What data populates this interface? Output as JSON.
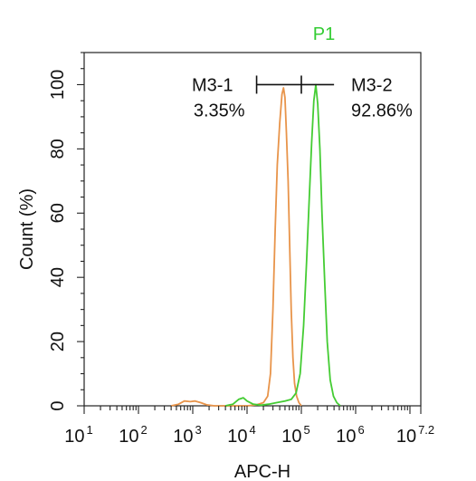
{
  "chart_data": {
    "type": "line",
    "title": "P1",
    "title_color": "#33cc33",
    "xlabel": "APC-H",
    "ylabel": "Count  (%)",
    "x_scale": "log",
    "xlim": [
      10,
      15848932
    ],
    "ylim": [
      0,
      110
    ],
    "x_ticks": [
      {
        "base": "10",
        "exp": "1",
        "value": 10
      },
      {
        "base": "10",
        "exp": "2",
        "value": 100
      },
      {
        "base": "10",
        "exp": "3",
        "value": 1000
      },
      {
        "base": "10",
        "exp": "4",
        "value": 10000
      },
      {
        "base": "10",
        "exp": "5",
        "value": 100000
      },
      {
        "base": "10",
        "exp": "6",
        "value": 1000000
      },
      {
        "base": "10",
        "exp": "7.2",
        "value": 15848932
      }
    ],
    "y_ticks": [
      "0",
      "20",
      "40",
      "60",
      "80",
      "100"
    ],
    "grid": false,
    "series": [
      {
        "color": "#e8944a",
        "points": [
          [
            400,
            0
          ],
          [
            550,
            0.5
          ],
          [
            700,
            1.5
          ],
          [
            900,
            1.3
          ],
          [
            1100,
            1.5
          ],
          [
            1400,
            1
          ],
          [
            1800,
            0.3
          ],
          [
            2500,
            0
          ],
          [
            5000,
            0
          ],
          [
            10000,
            0
          ],
          [
            15000,
            0.3
          ],
          [
            20000,
            1
          ],
          [
            24000,
            3
          ],
          [
            27000,
            10
          ],
          [
            30000,
            30
          ],
          [
            33000,
            55
          ],
          [
            36000,
            75
          ],
          [
            40000,
            88
          ],
          [
            44000,
            97
          ],
          [
            47000,
            99
          ],
          [
            50000,
            96
          ],
          [
            53000,
            85
          ],
          [
            57000,
            70
          ],
          [
            61000,
            50
          ],
          [
            65000,
            30
          ],
          [
            70000,
            15
          ],
          [
            75000,
            7
          ],
          [
            82000,
            3
          ],
          [
            90000,
            1
          ],
          [
            100000,
            0
          ]
        ]
      },
      {
        "color": "#44cc33",
        "points": [
          [
            4000,
            0
          ],
          [
            5500,
            0.5
          ],
          [
            7000,
            2
          ],
          [
            8500,
            2.5
          ],
          [
            10000,
            1.5
          ],
          [
            13000,
            0.5
          ],
          [
            18000,
            0.2
          ],
          [
            25000,
            0.5
          ],
          [
            35000,
            1
          ],
          [
            50000,
            1.5
          ],
          [
            65000,
            2
          ],
          [
            80000,
            4
          ],
          [
            95000,
            10
          ],
          [
            110000,
            25
          ],
          [
            125000,
            45
          ],
          [
            140000,
            65
          ],
          [
            155000,
            82
          ],
          [
            170000,
            95
          ],
          [
            185000,
            100
          ],
          [
            200000,
            94
          ],
          [
            220000,
            80
          ],
          [
            240000,
            60
          ],
          [
            270000,
            38
          ],
          [
            300000,
            20
          ],
          [
            340000,
            8
          ],
          [
            390000,
            3
          ],
          [
            450000,
            1
          ],
          [
            520000,
            0
          ]
        ]
      }
    ],
    "gates": [
      {
        "name": "M3-1",
        "percent": "3.35%",
        "range": [
          15000,
          100000
        ]
      },
      {
        "name": "M3-2",
        "percent": "92.86%",
        "range": [
          100000,
          400000
        ]
      }
    ],
    "gate_y": 100
  }
}
